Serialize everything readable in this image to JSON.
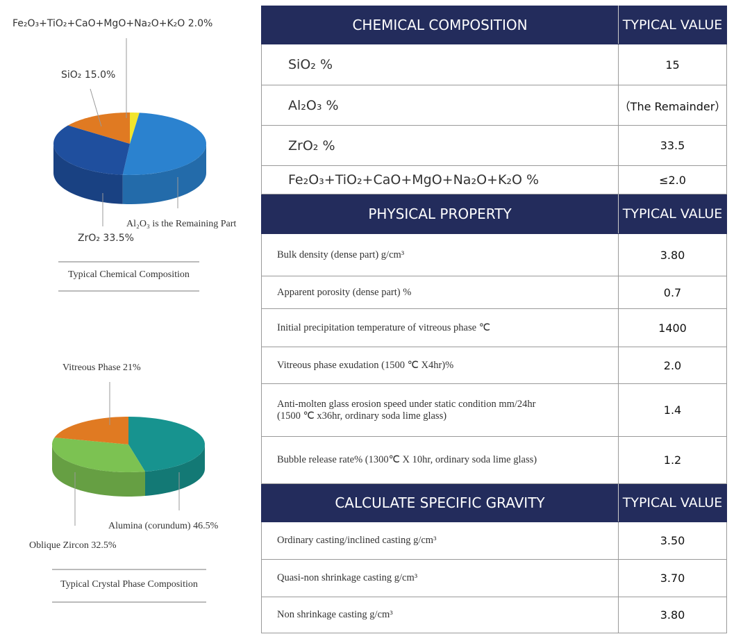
{
  "charts": [
    {
      "type": "pie",
      "caption": "Typical Chemical Composition",
      "slices": [
        {
          "label": "Fe₂O₃+TiO₂+CaO+MgO+Na₂O+K₂O 2.0%",
          "value": 2.0,
          "color": "#f2e52c"
        },
        {
          "label": "Al₂O₃ is the Remaining Part",
          "value": 49.5,
          "color": "#2b82cf"
        },
        {
          "label": "ZrO₂ 33.5%",
          "value": 33.5,
          "color": "#1f4f9e"
        },
        {
          "label": "SiO₂ 15.0%",
          "value": 15.0,
          "color": "#e07a22"
        }
      ]
    },
    {
      "type": "pie",
      "caption": "Typical Crystal Phase Composition",
      "slices": [
        {
          "label": "Alumina (corundum) 46.5%",
          "value": 46.5,
          "color": "#17938f"
        },
        {
          "label": "Oblique Zircon 32.5%",
          "value": 32.5,
          "color": "#7cc252"
        },
        {
          "label": "Vitreous Phase 21%",
          "value": 21,
          "color": "#e07a22"
        }
      ]
    }
  ],
  "table": {
    "sections": [
      {
        "header": [
          "CHEMICAL COMPOSITION",
          "TYPICAL VALUE"
        ],
        "rows": [
          [
            "SiO₂ %",
            "15"
          ],
          [
            "Al₂O₃ %",
            "（The Remainder）"
          ],
          [
            "ZrO₂ %",
            "33.5"
          ],
          [
            "Fe₂O₃+TiO₂+CaO+MgO+Na₂O+K₂O %",
            "≤2.0"
          ]
        ]
      },
      {
        "header": [
          "PHYSICAL PROPERTY",
          "TYPICAL VALUE"
        ],
        "rows": [
          [
            "Bulk density (dense part) g/cm³",
            "3.80"
          ],
          [
            "Apparent porosity (dense part) %",
            "0.7"
          ],
          [
            "Initial precipitation temperature of vitreous phase ℃",
            "1400"
          ],
          [
            "Vitreous phase exudation (1500 ℃ X4hr)%",
            "2.0"
          ],
          [
            "Anti-molten glass erosion speed under static condition  mm/24hr\n(1500 ℃ x36hr, ordinary soda lime glass)",
            "1.4"
          ],
          [
            "Bubble release rate% (1300℃ X 10hr, ordinary soda lime glass)",
            "1.2"
          ]
        ]
      },
      {
        "header": [
          "CALCULATE SPECIFIC GRAVITY",
          "TYPICAL VALUE"
        ],
        "rows": [
          [
            "Ordinary casting/inclined casting g/cm³",
            "3.50"
          ],
          [
            "Quasi-non shrinkage casting g/cm³",
            "3.70"
          ],
          [
            "Non shrinkage casting g/cm³",
            "3.80"
          ]
        ]
      }
    ]
  }
}
